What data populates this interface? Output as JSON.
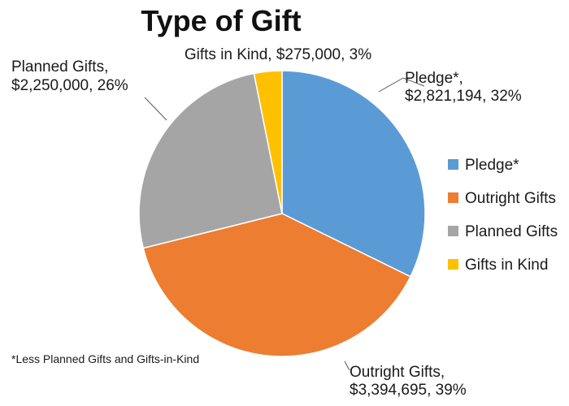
{
  "chart_data": {
    "type": "pie",
    "title": "Type of Gift",
    "slices": [
      {
        "name": "Pledge*",
        "value": 2821194,
        "percent": 32,
        "color": "#5b9bd5",
        "label_lines": [
          "Pledge*,",
          "$2,821,194, 32%"
        ]
      },
      {
        "name": "Outright Gifts",
        "value": 3394695,
        "percent": 39,
        "color": "#ed7d31",
        "label_lines": [
          "Outright Gifts,",
          "$3,394,695, 39%"
        ]
      },
      {
        "name": "Planned Gifts",
        "value": 2250000,
        "percent": 26,
        "color": "#a5a5a5",
        "label_lines": [
          "Planned Gifts,",
          "$2,250,000, 26%"
        ]
      },
      {
        "name": "Gifts in Kind",
        "value": 275000,
        "percent": 3,
        "color": "#ffc000",
        "label_lines": [
          "Gifts in Kind, $275,000, 3%"
        ]
      }
    ],
    "legend": {
      "placement": "right",
      "entries": [
        "Pledge*",
        "Outright Gifts",
        "Planned Gifts",
        "Gifts in Kind"
      ]
    },
    "footnote": "*Less Planned Gifts and Gifts-in-Kind"
  }
}
